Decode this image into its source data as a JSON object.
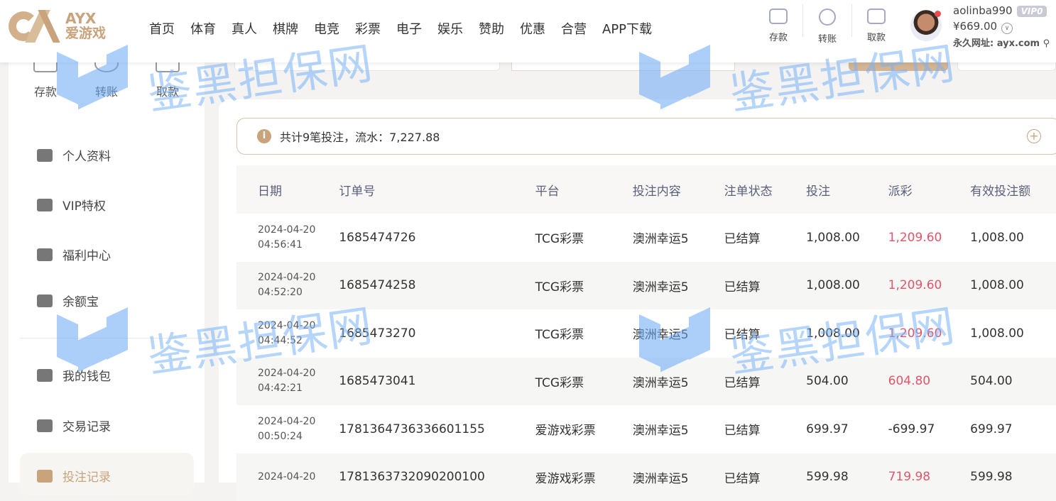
{
  "header": {
    "logo": {
      "en": "AYX",
      "cn": "爱游戏"
    },
    "nav": [
      "首页",
      "体育",
      "真人",
      "棋牌",
      "电竞",
      "彩票",
      "电子",
      "娱乐",
      "赞助",
      "优惠",
      "合营",
      "APP下载"
    ],
    "quick_actions": [
      {
        "label": "存款",
        "icon": "wallet-icon"
      },
      {
        "label": "转账",
        "icon": "transfer-icon"
      },
      {
        "label": "取款",
        "icon": "card-icon"
      }
    ],
    "user": {
      "name": "aolinba990",
      "vip": "VIP0",
      "balance": "¥669.00",
      "url": "永久网址: ayx.com"
    }
  },
  "sidebar": {
    "quick_actions": [
      {
        "label": "存款"
      },
      {
        "label": "转账"
      },
      {
        "label": "取款"
      }
    ],
    "items": [
      {
        "label": "个人资料"
      },
      {
        "label": "VIP特权"
      },
      {
        "label": "福利中心"
      },
      {
        "label": "余额宝"
      },
      {
        "label": "我的钱包"
      },
      {
        "label": "交易记录"
      },
      {
        "label": "投注记录",
        "active": true
      }
    ]
  },
  "main": {
    "notice": "共计9笔投注，流水：7,227.88",
    "columns": [
      "日期",
      "订单号",
      "平台",
      "投注内容",
      "注单状态",
      "投注",
      "派彩",
      "有效投注额"
    ],
    "rows": [
      {
        "date": "2024-04-20",
        "time": "04:56:41",
        "order": "1685474726",
        "platform": "TCG彩票",
        "content": "澳洲幸运5",
        "status": "已结算",
        "bet": "1,008.00",
        "payout": "1,209.60",
        "valid": "1,008.00"
      },
      {
        "date": "2024-04-20",
        "time": "04:52:20",
        "order": "1685474258",
        "platform": "TCG彩票",
        "content": "澳洲幸运5",
        "status": "已结算",
        "bet": "1,008.00",
        "payout": "1,209.60",
        "valid": "1,008.00"
      },
      {
        "date": "2024-04-20",
        "time": "04:44:52",
        "order": "1685473270",
        "platform": "TCG彩票",
        "content": "澳洲幸运5",
        "status": "已结算",
        "bet": "1,008.00",
        "payout": "1,209.60",
        "valid": "1,008.00"
      },
      {
        "date": "2024-04-20",
        "time": "04:42:21",
        "order": "1685473041",
        "platform": "TCG彩票",
        "content": "澳洲幸运5",
        "status": "已结算",
        "bet": "504.00",
        "payout": "604.80",
        "valid": "504.00"
      },
      {
        "date": "2024-04-20",
        "time": "00:50:24",
        "order": "1781364736336601155",
        "platform": "爱游戏彩票",
        "content": "澳洲幸运5",
        "status": "已结算",
        "bet": "699.97",
        "payout": "-699.97",
        "valid": "699.97"
      },
      {
        "date": "2024-04-20",
        "time": "",
        "order": "1781363732090200100",
        "platform": "爱游戏彩票",
        "content": "澳洲幸运5",
        "status": "已结算",
        "bet": "599.98",
        "payout": "719.98",
        "valid": "599.98"
      }
    ]
  },
  "watermark": "鉴黑担保网",
  "colors": {
    "accent": "#c9a37c",
    "payout_positive": "#e0566a",
    "watermark": "#7ab3f6"
  }
}
